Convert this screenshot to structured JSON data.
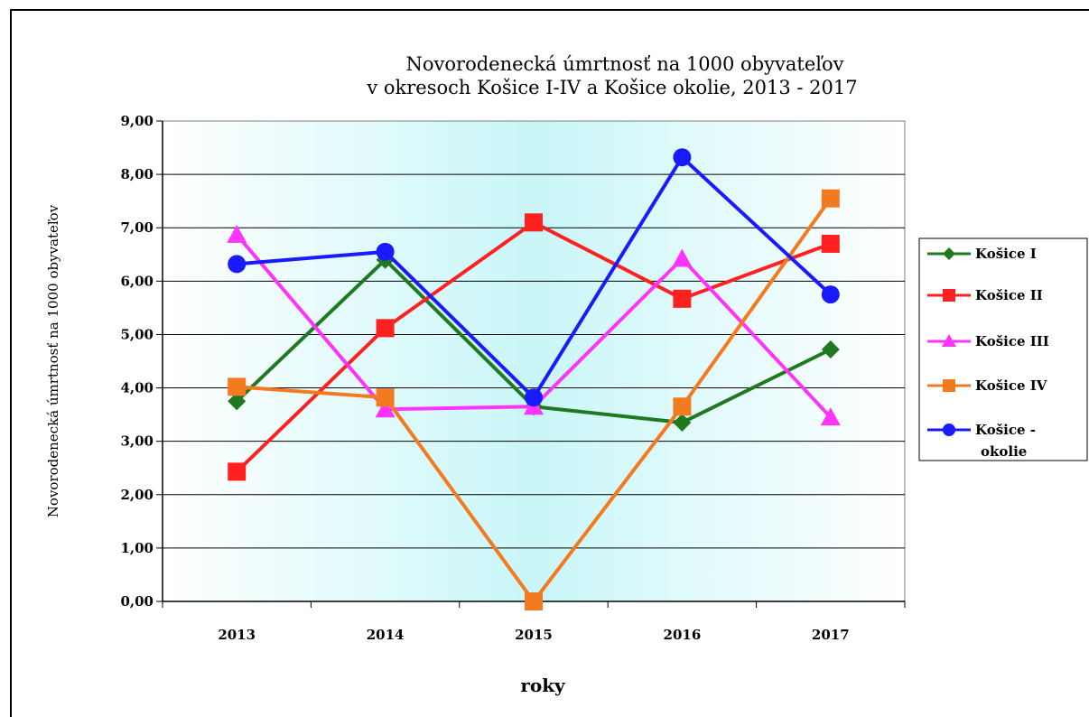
{
  "chart_data": {
    "type": "line",
    "title_line1": "Novorodenecká úmrtnosť na 1000 obyvateľov",
    "title_line2": "v okresoch Košice I-IV a Košice okolie, 2013 - 2017",
    "xlabel": "roky",
    "ylabel": "Novorodenecká úmrtnosť na 1000 obyvateľov",
    "categories": [
      "2013",
      "2014",
      "2015",
      "2016",
      "2017"
    ],
    "ylim": [
      0,
      9
    ],
    "yticks": [
      "0,00",
      "1,00",
      "2,00",
      "3,00",
      "4,00",
      "5,00",
      "6,00",
      "7,00",
      "8,00",
      "9,00"
    ],
    "grid": true,
    "legend_position": "right",
    "series": [
      {
        "name": "Košice I",
        "color": "#1f7a1f",
        "marker": "diamond",
        "values": [
          3.75,
          6.4,
          3.65,
          3.35,
          4.72
        ]
      },
      {
        "name": "Košice II",
        "color": "#ff2020",
        "marker": "square",
        "values": [
          2.43,
          5.12,
          7.1,
          5.67,
          6.7
        ]
      },
      {
        "name": "Košice III",
        "color": "#ff33ff",
        "marker": "triangle",
        "values": [
          6.87,
          3.6,
          3.65,
          6.42,
          3.45
        ]
      },
      {
        "name": "Košice IV",
        "color": "#f47a20",
        "marker": "square",
        "values": [
          4.02,
          3.82,
          0.0,
          3.65,
          7.55
        ]
      },
      {
        "name": "Košice - okolie",
        "legend_line1": "Košice -",
        "legend_line2": "okolie",
        "color": "#1a1aff",
        "marker": "circle",
        "values": [
          6.32,
          6.55,
          3.82,
          8.32,
          5.75
        ]
      }
    ]
  }
}
